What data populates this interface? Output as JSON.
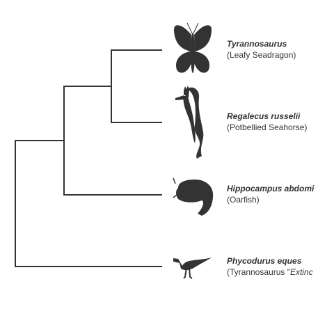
{
  "colors": {
    "branch": "#333333",
    "silhouette": "#333333",
    "background": "#ffffff"
  },
  "taxa": [
    {
      "scientific": "Tyrannosaurus",
      "common": "(Leafy Seadragon)",
      "icon": "butterfly-silhouette"
    },
    {
      "scientific": "Regalecus russelii",
      "common": "(Potbellied Seahorse)",
      "icon": "seahorse-silhouette"
    },
    {
      "scientific": "Hippocampus abdomi",
      "common": "(Oarfish)",
      "icon": "isopod-silhouette"
    },
    {
      "scientific": "Phycodurus eques",
      "common_prefix": "(Tyrannosaurus \"",
      "common_italic": "Extinc",
      "icon": "dinosaur-silhouette"
    }
  ]
}
